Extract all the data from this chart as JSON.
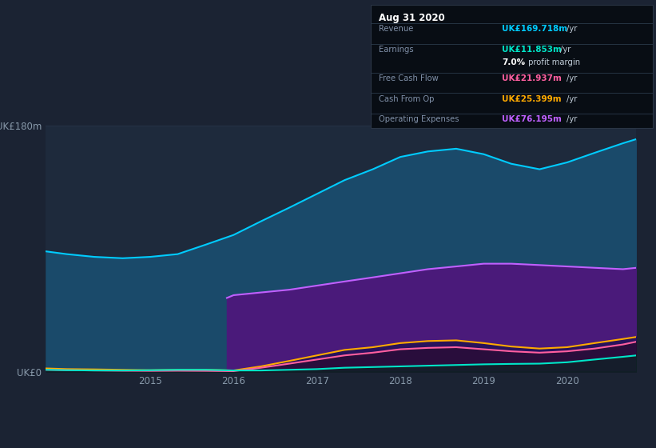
{
  "bg_color": "#1b2333",
  "plot_bg_color": "#1e2a3c",
  "grid_color": "#263347",
  "years": [
    2013.75,
    2014.0,
    2014.33,
    2014.67,
    2015.0,
    2015.33,
    2015.67,
    2016.0,
    2016.33,
    2016.67,
    2017.0,
    2017.33,
    2017.67,
    2018.0,
    2018.33,
    2018.67,
    2019.0,
    2019.33,
    2019.67,
    2020.0,
    2020.33,
    2020.67,
    2020.83
  ],
  "revenue": [
    88,
    86,
    84,
    83,
    84,
    86,
    93,
    100,
    110,
    120,
    130,
    140,
    148,
    157,
    161,
    163,
    159,
    152,
    148,
    153,
    160,
    167,
    170
  ],
  "earnings": [
    1.5,
    1.2,
    1.0,
    1.0,
    1.2,
    1.5,
    1.5,
    1.0,
    1.0,
    1.5,
    2.0,
    3.0,
    3.5,
    4.0,
    4.5,
    5.0,
    5.5,
    5.8,
    6.0,
    7.0,
    9.0,
    11.0,
    12.0
  ],
  "free_cash_flow": [
    1.5,
    1.2,
    1.0,
    0.8,
    0.7,
    0.8,
    0.7,
    0.5,
    3.0,
    6.0,
    9.0,
    12.0,
    14.0,
    16.5,
    17.5,
    18.0,
    16.5,
    15.0,
    14.0,
    15.0,
    17.0,
    20.0,
    22.0
  ],
  "cash_from_op": [
    2.5,
    2.0,
    1.8,
    1.5,
    1.2,
    1.5,
    1.5,
    1.0,
    4.0,
    8.0,
    12.0,
    16.0,
    18.0,
    21.0,
    22.5,
    23.0,
    21.0,
    18.5,
    17.0,
    18.0,
    21.0,
    24.0,
    25.5
  ],
  "op_expenses_x": [
    2015.92,
    2016.0,
    2016.33,
    2016.67,
    2017.0,
    2017.33,
    2017.67,
    2018.0,
    2018.33,
    2018.67,
    2019.0,
    2019.33,
    2019.67,
    2020.0,
    2020.33,
    2020.67,
    2020.83
  ],
  "op_expenses": [
    54,
    56,
    58,
    60,
    63,
    66,
    69,
    72,
    75,
    77,
    79,
    79,
    78,
    77,
    76,
    75,
    76
  ],
  "revenue_color": "#00ccff",
  "earnings_color": "#00e5c8",
  "free_cash_flow_color": "#ff5fa0",
  "cash_from_op_color": "#ffaa00",
  "op_expenses_color": "#c060ff",
  "revenue_fill": "#1a4a6a",
  "op_expenses_fill": "#4a1a7a",
  "ylim": [
    0,
    180
  ],
  "xticks": [
    2015,
    2016,
    2017,
    2018,
    2019,
    2020
  ],
  "xmin": 2013.75,
  "xmax": 2020.83,
  "tooltip": {
    "date": "Aug 31 2020",
    "revenue_label": "Revenue",
    "revenue_val": "UK£169.718m",
    "earnings_label": "Earnings",
    "earnings_val": "UK£11.853m",
    "profit_margin": "7.0%",
    "fcf_label": "Free Cash Flow",
    "fcf_val": "UK£21.937m",
    "cfo_label": "Cash From Op",
    "cfo_val": "UK£25.399m",
    "opex_label": "Operating Expenses",
    "opex_val": "UK£76.195m"
  },
  "legend_items": [
    "Revenue",
    "Earnings",
    "Free Cash Flow",
    "Cash From Op",
    "Operating Expenses"
  ],
  "legend_colors": [
    "#00ccff",
    "#00e5c8",
    "#ff5fa0",
    "#ffaa00",
    "#c060ff"
  ]
}
